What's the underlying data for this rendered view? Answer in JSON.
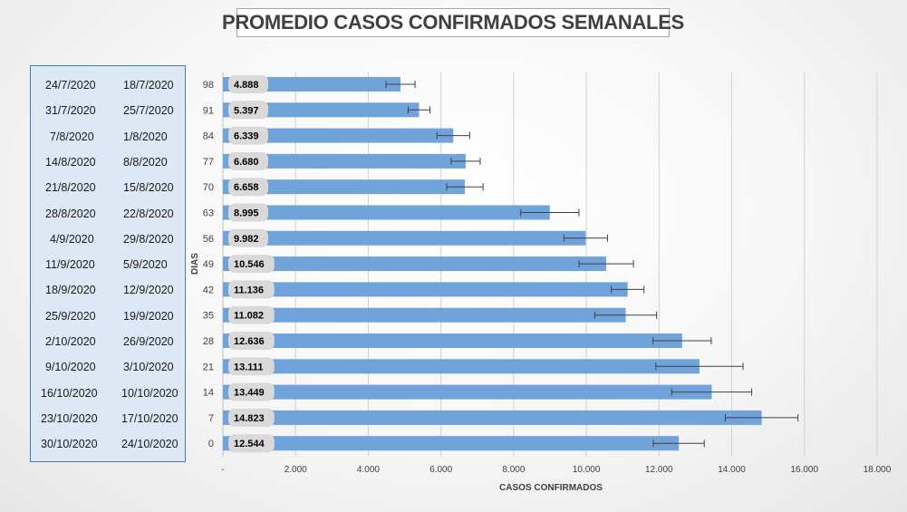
{
  "chart_data": {
    "type": "bar",
    "orientation": "horizontal",
    "title": "PROMEDIO CASOS CONFIRMADOS SEMANALES",
    "xlabel": "CASOS CONFIRMADOS",
    "ylabel": "DIAS",
    "xlim": [
      0,
      18000
    ],
    "x_ticks": [
      0,
      2000,
      4000,
      6000,
      8000,
      10000,
      12000,
      14000,
      16000,
      18000
    ],
    "x_tick_labels": [
      "-",
      "2.000",
      "4.000",
      "6.000",
      "8.000",
      "10.000",
      "12.000",
      "14.000",
      "16.000",
      "18.000"
    ],
    "grid": true,
    "bar_color": "#6fa3d9",
    "error_bar_color": "#404040",
    "label_bg_color": "#d9d9d9",
    "categories": [
      "98",
      "91",
      "84",
      "77",
      "70",
      "63",
      "56",
      "49",
      "42",
      "35",
      "28",
      "21",
      "14",
      "7",
      "0"
    ],
    "values": [
      4888,
      5397,
      6339,
      6680,
      6658,
      8995,
      9982,
      10546,
      11136,
      11082,
      12636,
      13111,
      13449,
      14823,
      12544
    ],
    "value_labels": [
      "4.888",
      "5.397",
      "6.339",
      "6.680",
      "6.658",
      "8.995",
      "9.982",
      "10.546",
      "11.136",
      "11.082",
      "12.636",
      "13.111",
      "13.449",
      "14.823",
      "12.544"
    ],
    "error_minus": [
      400,
      300,
      450,
      400,
      500,
      800,
      600,
      750,
      450,
      850,
      800,
      1200,
      1100,
      1000,
      700
    ],
    "error_plus": [
      400,
      300,
      450,
      400,
      500,
      800,
      600,
      750,
      450,
      850,
      800,
      1200,
      1100,
      1000,
      700
    ]
  },
  "date_table": {
    "rows": [
      {
        "end": "24/7/2020",
        "start": "18/7/2020"
      },
      {
        "end": "31/7/2020",
        "start": "25/7/2020"
      },
      {
        "end": "7/8/2020",
        "start": "1/8/2020"
      },
      {
        "end": "14/8/2020",
        "start": "8/8/2020"
      },
      {
        "end": "21/8/2020",
        "start": "15/8/2020"
      },
      {
        "end": "28/8/2020",
        "start": "22/8/2020"
      },
      {
        "end": "4/9/2020",
        "start": "29/8/2020"
      },
      {
        "end": "11/9/2020",
        "start": "5/9/2020"
      },
      {
        "end": "18/9/2020",
        "start": "12/9/2020"
      },
      {
        "end": "25/9/2020",
        "start": "19/9/2020"
      },
      {
        "end": "2/10/2020",
        "start": "26/9/2020"
      },
      {
        "end": "9/10/2020",
        "start": "3/10/2020"
      },
      {
        "end": "16/10/2020",
        "start": "10/10/2020"
      },
      {
        "end": "23/10/2020",
        "start": "17/10/2020"
      },
      {
        "end": "30/10/2020",
        "start": "24/10/2020"
      }
    ]
  }
}
